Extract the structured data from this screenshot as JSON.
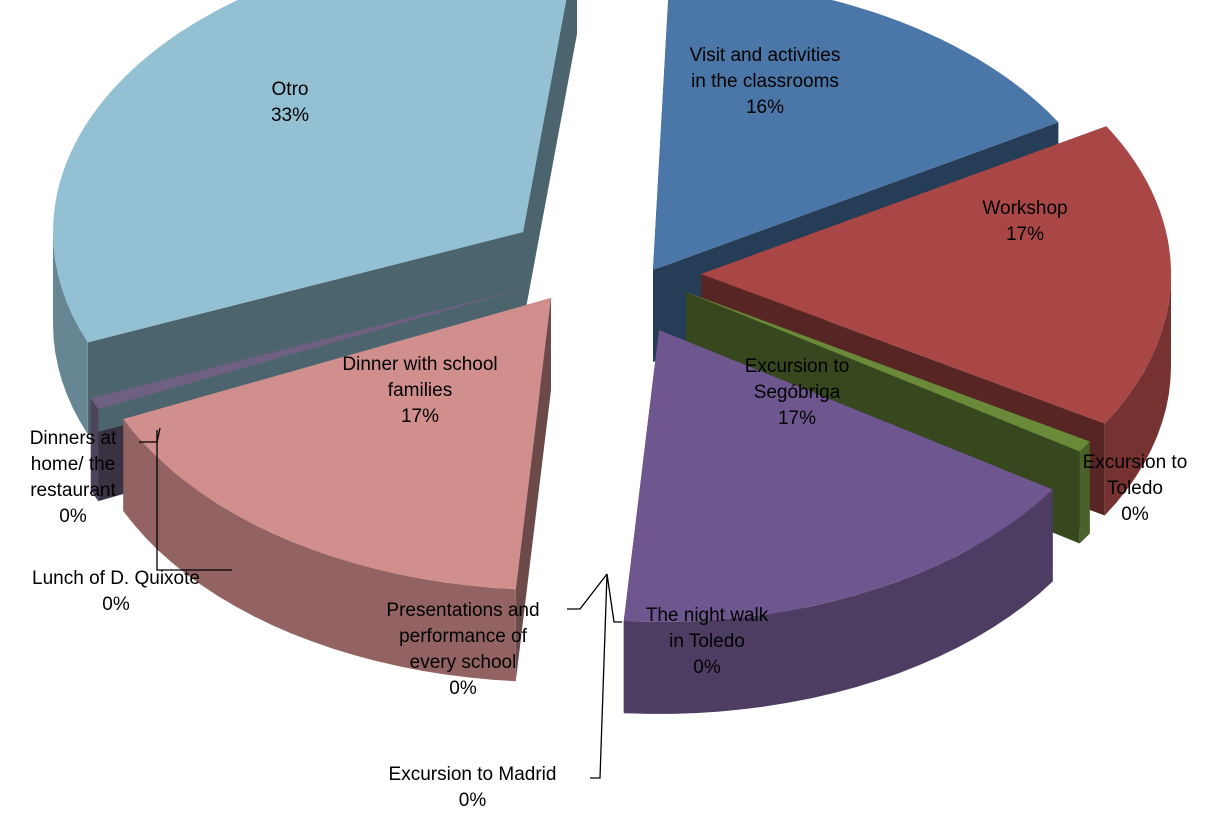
{
  "chart_data": {
    "type": "pie",
    "title": "",
    "style": "3d-exploded",
    "slices": [
      {
        "name": "Visit and activities in the classrooms",
        "value": 16,
        "pct_label": "16%",
        "color": "#4a76a8"
      },
      {
        "name": "Workshop",
        "value": 17,
        "pct_label": "17%",
        "color": "#a84745"
      },
      {
        "name": "Excursion to Toledo",
        "value": 0,
        "pct_label": "0%",
        "color": "#6a8a3a"
      },
      {
        "name": "Excursion to Segóbriga",
        "value": 17,
        "pct_label": "17%",
        "color": "#6e578e"
      },
      {
        "name": "The night walk in Toledo",
        "value": 0,
        "pct_label": "0%",
        "color": "#4aa0b8"
      },
      {
        "name": "Excursion to Madrid",
        "value": 0,
        "pct_label": "0%",
        "color": "#e8934a"
      },
      {
        "name": "Presentations and performance of every school",
        "value": 0,
        "pct_label": "0%",
        "color": "#8aa0c8"
      },
      {
        "name": "Dinner with school families",
        "value": 17,
        "pct_label": "17%",
        "color": "#d08e8c"
      },
      {
        "name": "Lunch of D. Quixote",
        "value": 0,
        "pct_label": "0%",
        "color": "#b8c88a"
      },
      {
        "name": "Dinners at home/ the restaurant",
        "value": 0,
        "pct_label": "0%",
        "color": "#6e6080"
      },
      {
        "name": "Otro",
        "value": 33,
        "pct_label": "33%",
        "color": "#93c0d3"
      }
    ]
  },
  "labels": {
    "visit": {
      "line1": "Visit and activities",
      "line2": "in  the classrooms",
      "pct": "16%"
    },
    "workshop": {
      "line1": "Workshop",
      "pct": "17%"
    },
    "toledo": {
      "line1": "Excursion to",
      "line2": "Toledo",
      "pct": "0%"
    },
    "segobriga": {
      "line1": "Excursion to",
      "line2": "Segóbriga",
      "pct": "17%"
    },
    "nightwalk": {
      "line1": "The night walk",
      "line2": "in Toledo",
      "pct": "0%"
    },
    "madrid": {
      "line1": "Excursion to Madrid",
      "pct": "0%"
    },
    "presentations": {
      "line1": "Presentations and",
      "line2": "performance of",
      "line3": "every school",
      "pct": "0%"
    },
    "dinner": {
      "line1": "Dinner with school",
      "line2": "families",
      "pct": "17%"
    },
    "lunch": {
      "line1": "Lunch of D. Quixote",
      "pct": "0%"
    },
    "dinners_home": {
      "line1": "Dinners at",
      "line2": "home/ the",
      "line3": "restaurant",
      "pct": "0%"
    },
    "otro": {
      "line1": "Otro",
      "pct": "33%"
    }
  }
}
